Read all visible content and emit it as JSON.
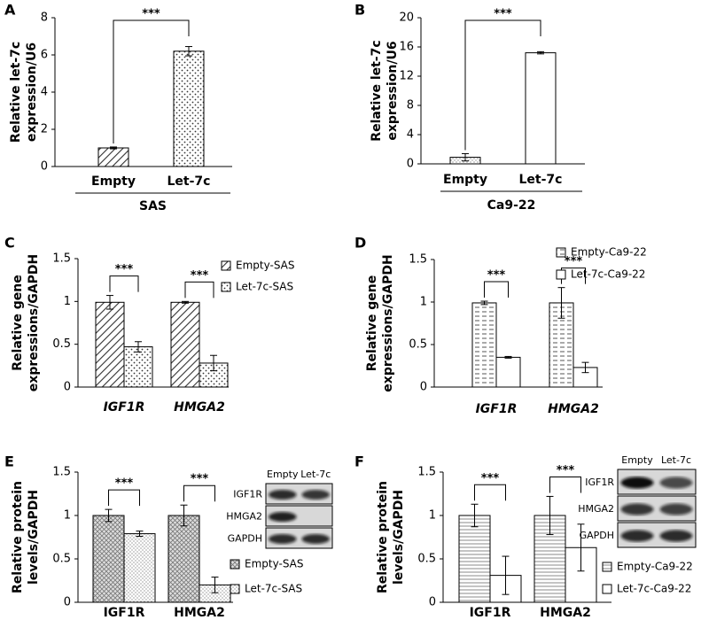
{
  "chart_data": [
    {
      "type": "bar",
      "panel": "A",
      "y_label": [
        "Relative let-7c",
        "expression/U6"
      ],
      "categories": [
        "Empty",
        "Let-7c"
      ],
      "values": [
        1.0,
        6.2
      ],
      "errors": [
        0.05,
        0.25
      ],
      "patterns": [
        "diagonal",
        "dots"
      ],
      "ylim": [
        0,
        8
      ],
      "yticks": [
        0,
        2,
        4,
        6,
        8
      ],
      "group_label": "SAS",
      "annotation": "***"
    },
    {
      "type": "bar",
      "panel": "B",
      "y_label": [
        "Relative let-7c",
        "expression/U6"
      ],
      "categories": [
        "Empty",
        "Let-7c"
      ],
      "values": [
        0.9,
        15.2
      ],
      "errors": [
        0.5,
        0.15
      ],
      "patterns": [
        "fine-dots",
        "none"
      ],
      "ylim": [
        0,
        20
      ],
      "yticks": [
        0,
        4,
        8,
        12,
        16,
        20
      ],
      "group_label": "Ca9-22",
      "annotation": "***"
    },
    {
      "type": "grouped_bar",
      "panel": "C",
      "y_label": [
        "Relative gene",
        "expressions/GAPDH"
      ],
      "categories": [
        "IGF1R",
        "HMGA2"
      ],
      "category_style": "italic",
      "series": [
        {
          "name": "Empty-SAS",
          "pattern": "diagonal",
          "values": [
            0.99,
            0.99
          ],
          "errors": [
            0.08,
            0.01
          ]
        },
        {
          "name": "Let-7c-SAS",
          "pattern": "dots",
          "values": [
            0.47,
            0.28
          ],
          "errors": [
            0.06,
            0.09
          ]
        }
      ],
      "ylim": [
        0,
        1.5
      ],
      "yticks": [
        0,
        0.5,
        1,
        1.5
      ],
      "annotations": [
        "***",
        "***"
      ]
    },
    {
      "type": "grouped_bar",
      "panel": "D",
      "y_label": [
        "Relative gene",
        "expressions/GAPDH"
      ],
      "categories": [
        "IGF1R",
        "HMGA2"
      ],
      "category_style": "italic",
      "series": [
        {
          "name": "Empty-Ca9-22",
          "pattern": "hdash",
          "values": [
            0.99,
            0.99
          ],
          "errors": [
            0.02,
            0.18
          ]
        },
        {
          "name": "Let-7c-Ca9-22",
          "pattern": "none",
          "values": [
            0.35,
            0.23
          ],
          "errors": [
            0.01,
            0.06
          ]
        }
      ],
      "ylim": [
        0,
        1.5
      ],
      "yticks": [
        0,
        0.5,
        1,
        1.5
      ],
      "annotations": [
        "***",
        "***"
      ]
    },
    {
      "type": "grouped_bar",
      "panel": "E",
      "y_label": [
        "Relative protein",
        "levels/GAPDH"
      ],
      "categories": [
        "IGF1R",
        "HMGA2"
      ],
      "category_style": "normal",
      "series": [
        {
          "name": "Empty-SAS",
          "pattern": "crosshatch",
          "values": [
            1.0,
            1.0
          ],
          "errors": [
            0.07,
            0.12
          ]
        },
        {
          "name": "Let-7c-SAS",
          "pattern": "fine-dots",
          "values": [
            0.79,
            0.2
          ],
          "errors": [
            0.03,
            0.09
          ]
        }
      ],
      "ylim": [
        0,
        1.5
      ],
      "yticks": [
        0,
        0.5,
        1,
        1.5
      ],
      "annotations": [
        "***",
        "***"
      ],
      "blot": {
        "lanes": [
          "Empty",
          "Let-7c"
        ],
        "rows": [
          "IGF1R",
          "HMGA2",
          "GAPDH"
        ]
      }
    },
    {
      "type": "grouped_bar",
      "panel": "F",
      "y_label": [
        "Relative protein",
        "levels/GAPDH"
      ],
      "categories": [
        "IGF1R",
        "HMGA2"
      ],
      "category_style": "normal",
      "series": [
        {
          "name": "Empty-Ca9-22",
          "pattern": "hlines",
          "values": [
            1.0,
            1.0
          ],
          "errors": [
            0.13,
            0.22
          ]
        },
        {
          "name": "Let-7c-Ca9-22",
          "pattern": "none",
          "values": [
            0.31,
            0.63
          ],
          "errors": [
            0.22,
            0.27
          ]
        }
      ],
      "ylim": [
        0,
        1.5
      ],
      "yticks": [
        0,
        0.5,
        1,
        1.5
      ],
      "annotations": [
        "***",
        "***"
      ],
      "blot": {
        "lanes": [
          "Empty",
          "Let-7c"
        ],
        "rows": [
          "IGF1R",
          "HMGA2",
          "GAPDH"
        ]
      }
    }
  ]
}
